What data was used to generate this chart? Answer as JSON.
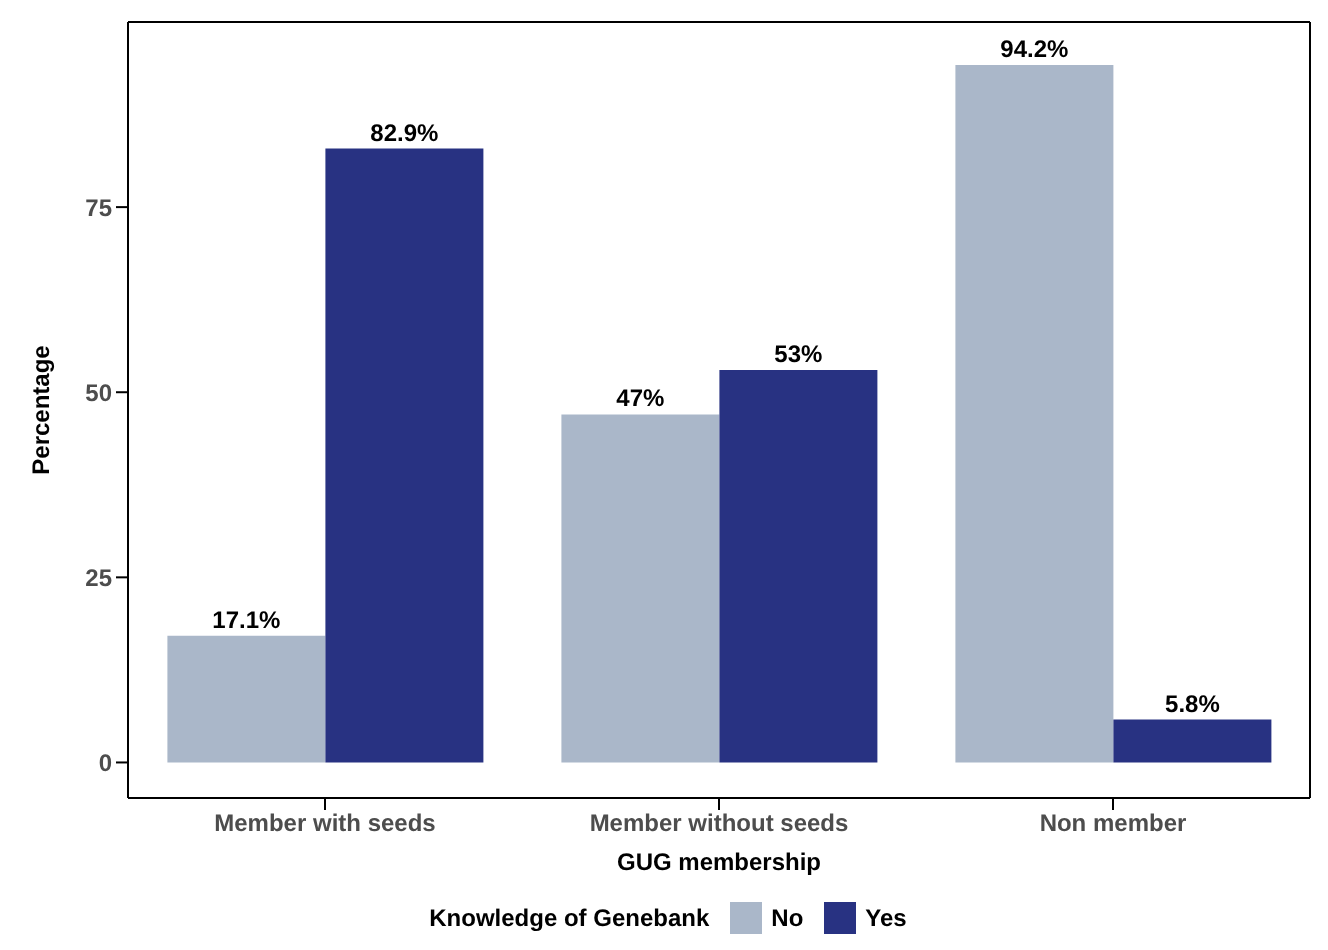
{
  "chart_data": {
    "type": "bar",
    "xlabel": "GUG membership",
    "ylabel": "Percentage",
    "legend_title": "Knowledge of Genebank",
    "categories": [
      "Member with seeds",
      "Member without seeds",
      "Non member"
    ],
    "series": [
      {
        "name": "No",
        "color": "#aab7c9",
        "values": [
          17.1,
          47,
          94.2
        ],
        "value_labels": [
          "17.1%",
          "47%",
          "94.2%"
        ]
      },
      {
        "name": "Yes",
        "color": "#283282",
        "values": [
          82.9,
          53,
          5.8
        ],
        "value_labels": [
          "82.9%",
          "53%",
          "5.8%"
        ]
      }
    ],
    "ylim": [
      -4.8,
      100
    ],
    "yticks": [
      0,
      25,
      50,
      75
    ],
    "grid": false,
    "legend": "bottom"
  }
}
